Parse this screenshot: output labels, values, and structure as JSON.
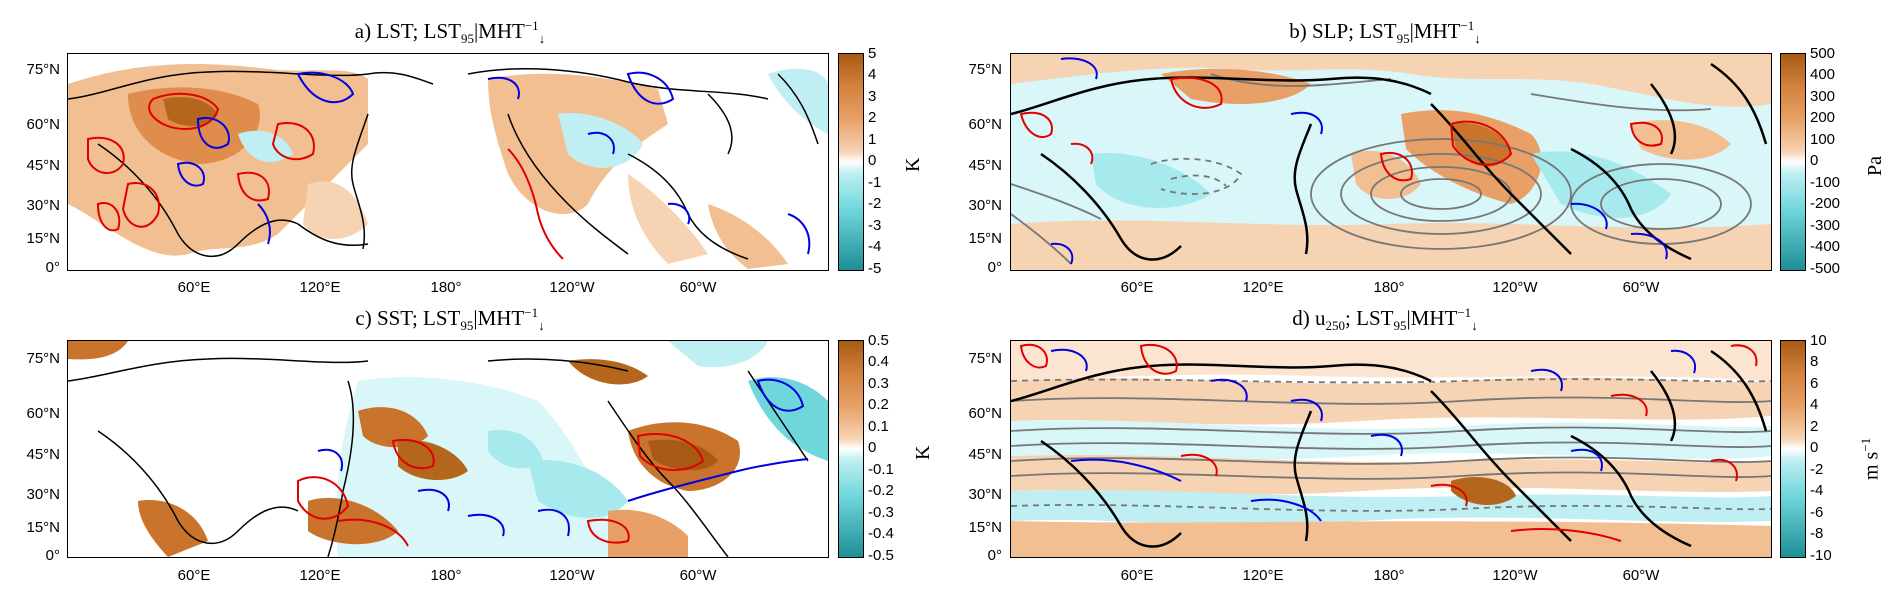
{
  "panels": [
    {
      "id": "a",
      "title_prefix": "a) LST; LST",
      "title_sub": "95",
      "title_mid": "|MHT",
      "title_sup": "−1",
      "title_arrow": "↓",
      "unit_label": "K",
      "cbar_ticks": [
        "5",
        "4",
        "3",
        "2",
        "1",
        "0",
        "-1",
        "-2",
        "-3",
        "-4",
        "-5"
      ],
      "lat_labels": [
        "75°N",
        "60°N",
        "45°N",
        "30°N",
        "15°N",
        "0°"
      ],
      "lon_labels": [
        "60°E",
        "120°E",
        "180°",
        "120°W",
        "60°W"
      ],
      "ocean_fill": "#ffffff",
      "land_field": true
    },
    {
      "id": "b",
      "title_prefix": "b) SLP; LST",
      "title_sub": "95",
      "title_mid": "|MHT",
      "title_sup": "−1",
      "title_arrow": "↓",
      "unit_label": "Pa",
      "cbar_ticks": [
        "500",
        "400",
        "300",
        "200",
        "100",
        "0",
        "-100",
        "-200",
        "-300",
        "-400",
        "-500"
      ],
      "lat_labels": [
        "75°N",
        "60°N",
        "45°N",
        "30°N",
        "15°N",
        "0°"
      ],
      "lon_labels": [
        "60°E",
        "120°E",
        "180°",
        "120°W",
        "60°W"
      ]
    },
    {
      "id": "c",
      "title_prefix": "c) SST; LST",
      "title_sub": "95",
      "title_mid": "|MHT",
      "title_sup": "−1",
      "title_arrow": "↓",
      "unit_label": "K",
      "cbar_ticks": [
        "0.5",
        "0.4",
        "0.3",
        "0.2",
        "0.1",
        "0",
        "-0.1",
        "-0.2",
        "-0.3",
        "-0.4",
        "-0.5"
      ],
      "lat_labels": [
        "75°N",
        "60°N",
        "45°N",
        "30°N",
        "15°N",
        "0°"
      ],
      "lon_labels": [
        "60°E",
        "120°E",
        "180°",
        "120°W",
        "60°W"
      ]
    },
    {
      "id": "d",
      "title_prefix": "d) u",
      "title_sub": "250",
      "title_mid": "; LST",
      "title_sub2": "95",
      "title_mid2": "|MHT",
      "title_sup": "−1",
      "title_arrow": "↓",
      "unit_label": "m s",
      "unit_sup": "−1",
      "cbar_ticks": [
        "10",
        "8",
        "6",
        "4",
        "2",
        "0",
        "-2",
        "-4",
        "-6",
        "-8",
        "-10"
      ],
      "lat_labels": [
        "75°N",
        "60°N",
        "45°N",
        "30°N",
        "15°N",
        "0°"
      ],
      "lon_labels": [
        "60°E",
        "120°E",
        "180°",
        "120°W",
        "60°W"
      ]
    }
  ],
  "colors": {
    "brown_strong": "#a85a14",
    "orange": "#e8a066",
    "orange_light": "#f6d3b2",
    "cyan_light": "#bfeff2",
    "cyan": "#6fd6dc",
    "teal_strong": "#1e8e96",
    "red_contour": "#e00000",
    "blue_contour": "#0000e0",
    "gray_contour": "#777777",
    "coast": "#000000"
  }
}
